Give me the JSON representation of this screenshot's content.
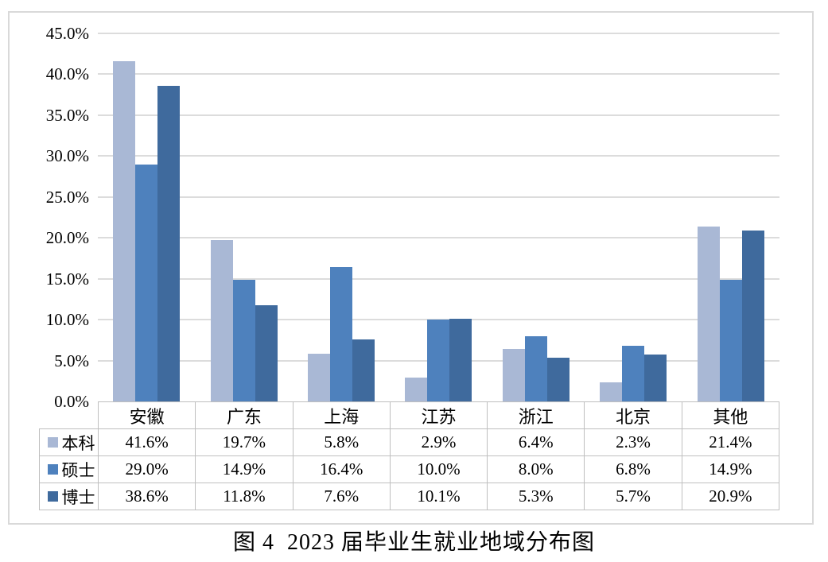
{
  "figure": {
    "caption": "图 4  2023 届毕业生就业地域分布图"
  },
  "chart_data": {
    "type": "bar",
    "title": "图4 2023届毕业生就业地域分布图",
    "categories": [
      "安徽",
      "广东",
      "上海",
      "江苏",
      "浙江",
      "北京",
      "其他"
    ],
    "series": [
      {
        "name": "本科",
        "color": "#a9b8d5",
        "values": [
          41.6,
          19.7,
          5.8,
          2.9,
          6.4,
          2.3,
          21.4
        ]
      },
      {
        "name": "硕士",
        "color": "#4e81bd",
        "values": [
          29.0,
          14.9,
          16.4,
          10.0,
          8.0,
          6.8,
          14.9
        ]
      },
      {
        "name": "博士",
        "color": "#3f6a9d",
        "values": [
          38.6,
          11.8,
          7.6,
          10.1,
          5.3,
          5.7,
          20.9
        ]
      }
    ],
    "xlabel": "",
    "ylabel": "",
    "ylim": [
      0,
      45
    ],
    "ytick_step": 5,
    "ytick_labels": [
      "45.0%",
      "40.0%",
      "35.0%",
      "30.0%",
      "25.0%",
      "20.0%",
      "15.0%",
      "10.0%",
      "5.0%",
      "0.0%"
    ],
    "value_format": "one-decimal-percent",
    "grid": true,
    "legend_position": "data-table-left",
    "data_table": true
  },
  "colors": {
    "gridline": "#dcdcdc",
    "table_border": "#bfbfbf",
    "frame_border": "#d9d9d9",
    "text": "#000000"
  }
}
